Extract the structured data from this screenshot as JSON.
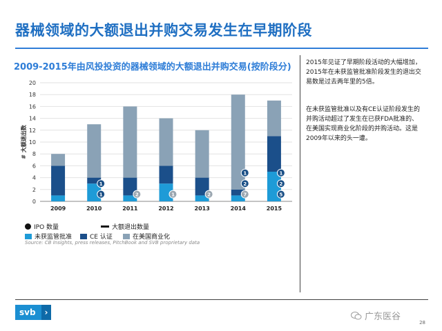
{
  "page": {
    "title": "器械领域的大额退出并购交易发生在早期阶段",
    "chart_heading": "2009-2015年由风投投资的器械领域的大额退出并购交易(按阶段分)",
    "page_number": "28",
    "watermark": "广东医谷",
    "logo": "svb"
  },
  "right_panel": {
    "paragraph1": "2015年见证了早期阶段活动的大幅增加，2015年在未获监管批准阶段发生的退出交易数是过去两年里的5倍。",
    "paragraph2": "在未获监管批准以及有CE认证阶段发生的并购活动超过了发生在已获FDA批准的、在美国实现商业化阶段的并购活动。这是2009年以来的头一遭。"
  },
  "colors": {
    "pre_approval": "#1e9bd7",
    "ce_mark": "#1b4f8a",
    "us_commercial": "#8aa2b6",
    "title": "#1f6fc2",
    "ipo_badge": "#1a4f86",
    "ipo_badge_gray": "#9aa6b0"
  },
  "chart_data": {
    "type": "bar",
    "stacked": true,
    "categories": [
      "2009",
      "2010",
      "2011",
      "2012",
      "2013",
      "2014",
      "2015"
    ],
    "series": [
      {
        "name": "未获监管批准",
        "values": [
          1,
          3,
          1,
          3,
          1,
          1,
          5
        ]
      },
      {
        "name": "CE 认证",
        "values": [
          5,
          1,
          3,
          3,
          3,
          1,
          6
        ]
      },
      {
        "name": "在美国商业化",
        "values": [
          2,
          9,
          12,
          8,
          8,
          16,
          6
        ]
      }
    ],
    "totals": [
      8,
      13,
      16,
      14,
      12,
      18,
      17
    ],
    "ipo_counts": [
      {
        "year": "2010",
        "labels": [
          "1",
          "1"
        ]
      },
      {
        "year": "2011",
        "labels": [
          "2"
        ]
      },
      {
        "year": "2012",
        "labels": [
          "1"
        ]
      },
      {
        "year": "2013",
        "labels": [
          "2"
        ]
      },
      {
        "year": "2014",
        "labels": [
          "7",
          "2",
          "1"
        ]
      },
      {
        "year": "2015",
        "labels": [
          "5",
          "2",
          "1"
        ]
      }
    ],
    "ylabel": "# 大额退出数",
    "ylim": [
      0,
      20
    ],
    "yticks": [
      0,
      2,
      4,
      6,
      8,
      10,
      12,
      14,
      16,
      18,
      20
    ],
    "legend": {
      "ipo": "IPO 数量",
      "big_exits": "大额退出数量",
      "pre_approval": "未获监管批准",
      "ce_mark": "CE 认证",
      "us_commercial": "在美国商业化"
    },
    "source": "Source: CB Insights, press releases, PitchBook and SVB proprietary data"
  }
}
